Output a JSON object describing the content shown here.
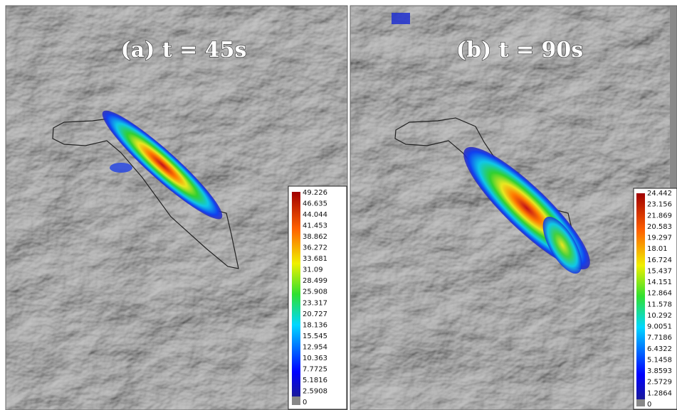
{
  "panels": [
    {
      "title": "(a) t = 45s",
      "colorbar": [
        "49.226",
        "46.635",
        "44.044",
        "41.453",
        "38.862",
        "36.272",
        "33.681",
        "31.09",
        "28.499",
        "25.908",
        "23.317",
        "20.727",
        "18.136",
        "15.545",
        "12.954",
        "10.363",
        "7.7725",
        "5.1816",
        "2.5908",
        "0"
      ]
    },
    {
      "title": "(b) t = 90s",
      "colorbar": [
        "24.442",
        "23.156",
        "21.869",
        "20.583",
        "19.297",
        "18.01",
        "16.724",
        "15.437",
        "14.151",
        "12.864",
        "11.578",
        "10.292",
        "9.0051",
        "7.7186",
        "6.4322",
        "5.1458",
        "3.8593",
        "2.5729",
        "1.2864",
        "0"
      ]
    }
  ]
}
